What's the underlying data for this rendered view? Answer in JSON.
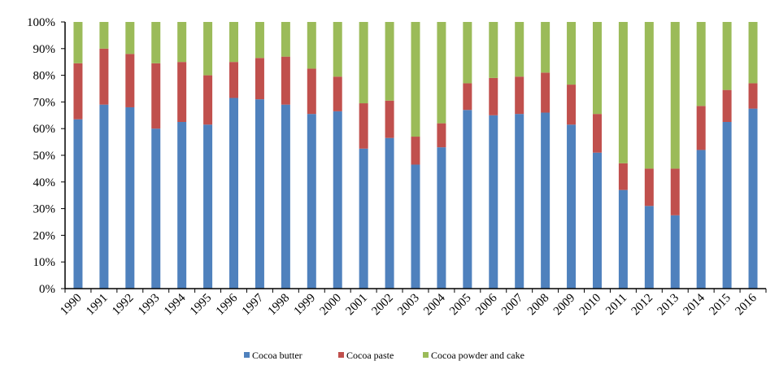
{
  "chart_data": {
    "type": "bar",
    "stacked": true,
    "percent": true,
    "title": "",
    "xlabel": "",
    "ylabel": "",
    "ylim": [
      0,
      100
    ],
    "yticks": [
      "0%",
      "10%",
      "20%",
      "30%",
      "40%",
      "50%",
      "60%",
      "70%",
      "80%",
      "90%",
      "100%"
    ],
    "grid": false,
    "legend_position": "bottom",
    "categories": [
      "1990",
      "1991",
      "1992",
      "1993",
      "1994",
      "1995",
      "1996",
      "1997",
      "1998",
      "1999",
      "2000",
      "2001",
      "2002",
      "2003",
      "2004",
      "2005",
      "2006",
      "2007",
      "2008",
      "2009",
      "2010",
      "2011",
      "2012",
      "2013",
      "2014",
      "2015",
      "2016"
    ],
    "series": [
      {
        "name": "Cocoa butter",
        "color": "#4f81bd",
        "values": [
          63.5,
          69,
          68,
          60,
          62.5,
          61.5,
          71.5,
          71,
          69,
          65.5,
          66.5,
          52.5,
          56.5,
          46.5,
          53,
          67,
          65,
          65.5,
          66,
          61.5,
          51,
          37,
          31,
          27.5,
          52,
          62.5,
          67.5
        ]
      },
      {
        "name": "Cocoa paste",
        "color": "#c0504d",
        "values": [
          21,
          21,
          20,
          24.5,
          22.5,
          18.5,
          13.5,
          15.5,
          18,
          17,
          13,
          17,
          14,
          10.5,
          9,
          10,
          14,
          14,
          15,
          15,
          14.5,
          10,
          14,
          17.5,
          16.5,
          12,
          9.5
        ]
      },
      {
        "name": "Cocoa powder and cake",
        "color": "#9bbb59",
        "values": [
          15.5,
          10,
          12,
          15.5,
          15,
          20,
          15,
          13.5,
          13,
          17.5,
          20.5,
          30.5,
          29.5,
          43,
          38,
          23,
          21,
          20.5,
          19,
          23.5,
          34.5,
          53,
          55,
          55,
          31.5,
          25.5,
          23
        ]
      }
    ]
  }
}
